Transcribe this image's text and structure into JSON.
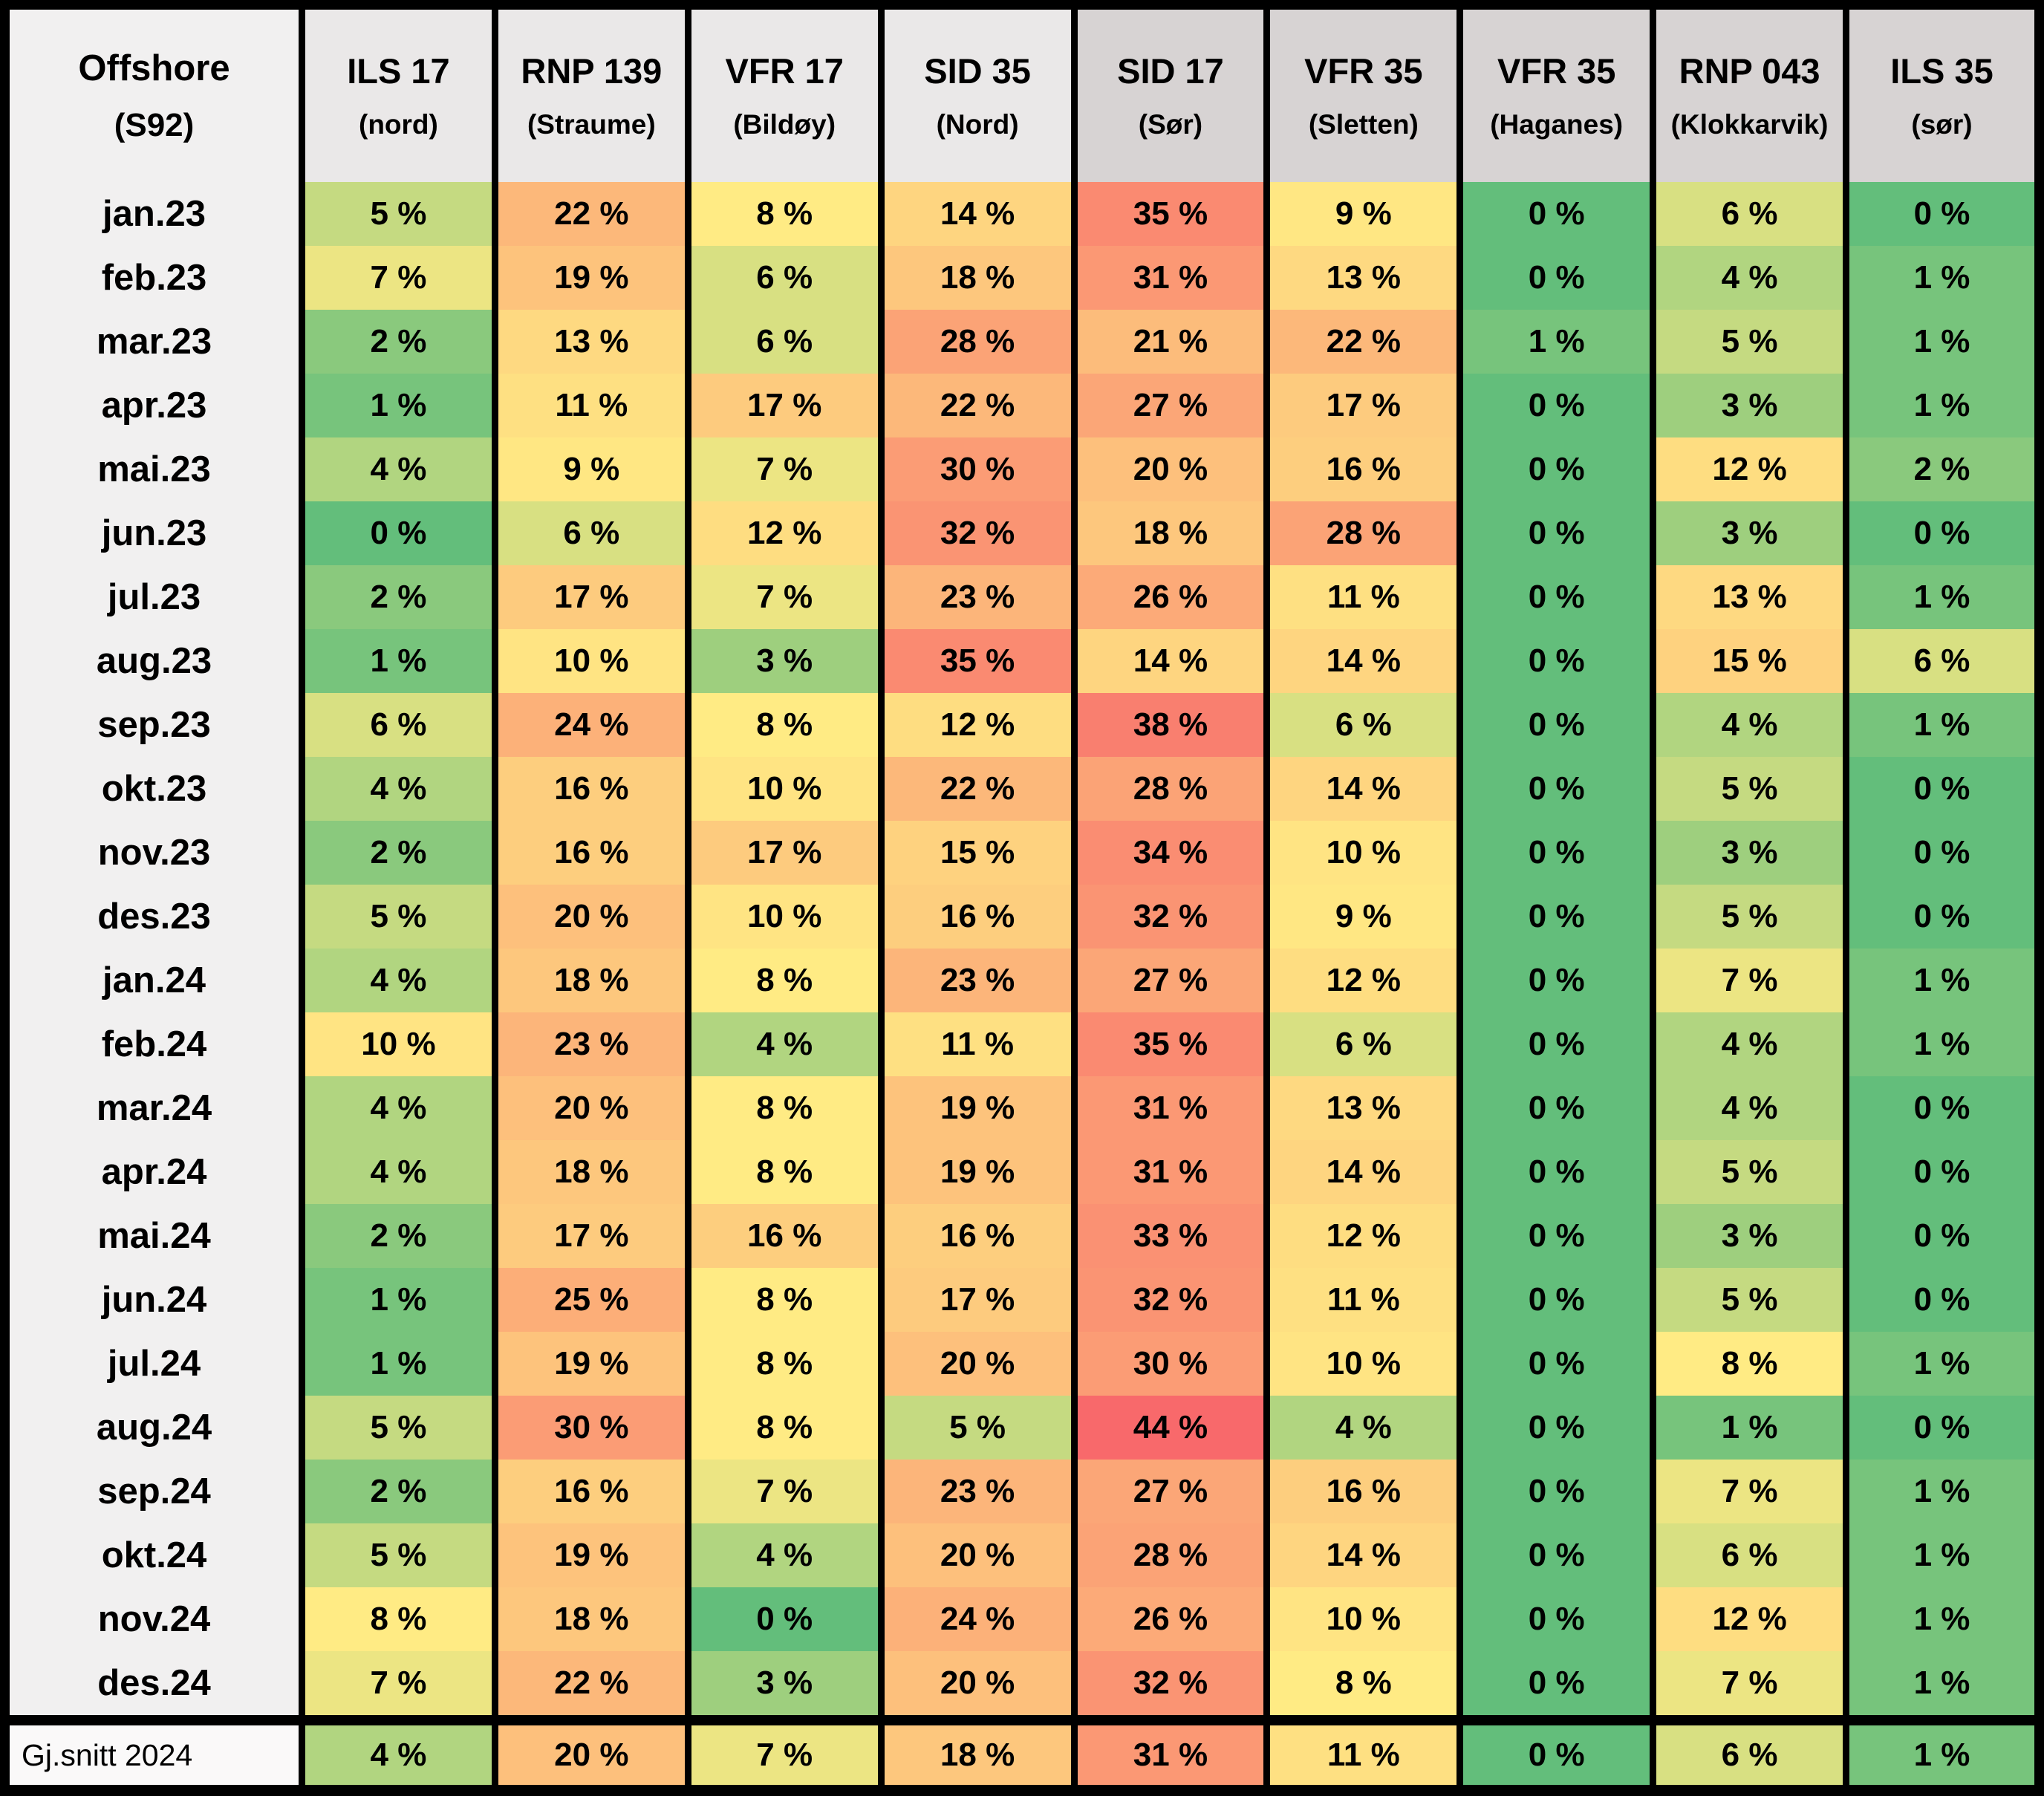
{
  "table": {
    "corner": {
      "line1": "Offshore",
      "line2": "(S92)"
    },
    "columns": [
      {
        "name": "ILS 17",
        "sub": "(nord)",
        "shade": "light"
      },
      {
        "name": "RNP 139",
        "sub": "(Straume)",
        "shade": "light"
      },
      {
        "name": "VFR 17",
        "sub": "(Bildøy)",
        "shade": "light"
      },
      {
        "name": "SID 35",
        "sub": "(Nord)",
        "shade": "light"
      },
      {
        "name": "SID 17",
        "sub": "(Sør)",
        "shade": "dark"
      },
      {
        "name": "VFR 35",
        "sub": "(Sletten)",
        "shade": "dark"
      },
      {
        "name": "VFR 35",
        "sub": "(Haganes)",
        "shade": "dark"
      },
      {
        "name": "RNP 043",
        "sub": "(Klokkarvik)",
        "shade": "dark"
      },
      {
        "name": "ILS 35",
        "sub": "(sør)",
        "shade": "dark"
      }
    ],
    "header_colors": {
      "light": "#EAE8E8",
      "dark": "#D7D3D3"
    },
    "label_bg": "#F1F0F0",
    "footer_label_bg": "#FAF9F9",
    "border_color": "#000000",
    "value_suffix": " %"
  },
  "chart_data": {
    "type": "heatmap",
    "title": "Offshore (S92)",
    "unit": "%",
    "legend_position": "none",
    "grid": false,
    "columns": [
      "ILS 17 (nord)",
      "RNP 139 (Straume)",
      "VFR 17 (Bildøy)",
      "SID 35 (Nord)",
      "SID 17 (Sør)",
      "VFR 35 (Sletten)",
      "VFR 35 (Haganes)",
      "RNP 043 (Klokkarvik)",
      "ILS 35 (sør)"
    ],
    "rows": [
      "jan.23",
      "feb.23",
      "mar.23",
      "apr.23",
      "mai.23",
      "jun.23",
      "jul.23",
      "aug.23",
      "sep.23",
      "okt.23",
      "nov.23",
      "des.23",
      "jan.24",
      "feb.24",
      "mar.24",
      "apr.24",
      "mai.24",
      "jun.24",
      "jul.24",
      "aug.24",
      "sep.24",
      "okt.24",
      "nov.24",
      "des.24"
    ],
    "values_percent": [
      [
        5,
        22,
        8,
        14,
        35,
        9,
        0,
        6,
        0
      ],
      [
        7,
        19,
        6,
        18,
        31,
        13,
        0,
        4,
        1
      ],
      [
        2,
        13,
        6,
        28,
        21,
        22,
        1,
        5,
        1
      ],
      [
        1,
        11,
        17,
        22,
        27,
        17,
        0,
        3,
        1
      ],
      [
        4,
        9,
        7,
        30,
        20,
        16,
        0,
        12,
        2
      ],
      [
        0,
        6,
        12,
        32,
        18,
        28,
        0,
        3,
        0
      ],
      [
        2,
        17,
        7,
        23,
        26,
        11,
        0,
        13,
        1
      ],
      [
        1,
        10,
        3,
        35,
        14,
        14,
        0,
        15,
        6
      ],
      [
        6,
        24,
        8,
        12,
        38,
        6,
        0,
        4,
        1
      ],
      [
        4,
        16,
        10,
        22,
        28,
        14,
        0,
        5,
        0
      ],
      [
        2,
        16,
        17,
        15,
        34,
        10,
        0,
        3,
        0
      ],
      [
        5,
        20,
        10,
        16,
        32,
        9,
        0,
        5,
        0
      ],
      [
        4,
        18,
        8,
        23,
        27,
        12,
        0,
        7,
        1
      ],
      [
        10,
        23,
        4,
        11,
        35,
        6,
        0,
        4,
        1
      ],
      [
        4,
        20,
        8,
        19,
        31,
        13,
        0,
        4,
        0
      ],
      [
        4,
        18,
        8,
        19,
        31,
        14,
        0,
        5,
        0
      ],
      [
        2,
        17,
        16,
        16,
        33,
        12,
        0,
        3,
        0
      ],
      [
        1,
        25,
        8,
        17,
        32,
        11,
        0,
        5,
        0
      ],
      [
        1,
        19,
        8,
        20,
        30,
        10,
        0,
        8,
        1
      ],
      [
        5,
        30,
        8,
        5,
        44,
        4,
        0,
        1,
        0
      ],
      [
        2,
        16,
        7,
        23,
        27,
        16,
        0,
        7,
        1
      ],
      [
        5,
        19,
        4,
        20,
        28,
        14,
        0,
        6,
        1
      ],
      [
        8,
        18,
        0,
        24,
        26,
        10,
        0,
        12,
        1
      ],
      [
        7,
        22,
        3,
        20,
        32,
        8,
        0,
        7,
        1
      ]
    ],
    "footer": {
      "label": "Gj.snitt 2024",
      "values_percent": [
        4,
        20,
        7,
        18,
        31,
        11,
        0,
        6,
        1
      ]
    },
    "color_scale": {
      "min_value": 0,
      "min_color": "#63BE7B",
      "mid_value": 8,
      "mid_color": "#FFEB84",
      "max_value": 44,
      "max_color": "#F8696B"
    }
  }
}
